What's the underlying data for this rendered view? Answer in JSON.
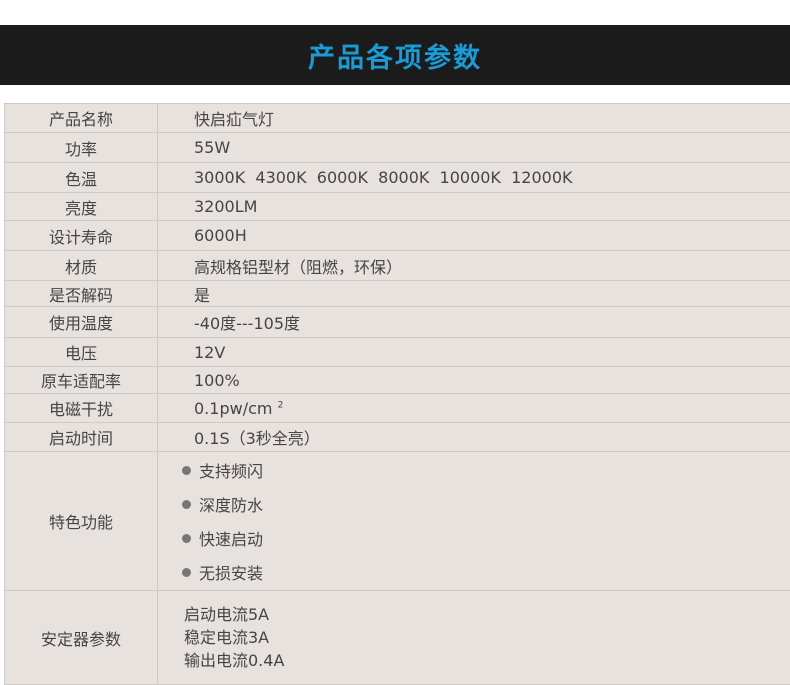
{
  "title": "产品各项参数",
  "rows": [
    {
      "k": "产品名称",
      "v": "快启疝气灯"
    },
    {
      "k": "功率",
      "v": "55W"
    },
    {
      "k": "色温",
      "v": "3000K  4300K  6000K  8000K  10000K  12000K"
    },
    {
      "k": "亮度",
      "v": "3200LM"
    },
    {
      "k": "设计寿命",
      "v": "6000H"
    },
    {
      "k": "材质",
      "v": "高规格铝型材（阻燃，环保）"
    },
    {
      "k": "是否解码",
      "v": "是"
    },
    {
      "k": "使用温度",
      "v": "-40度---105度"
    },
    {
      "k": "电压",
      "v": "12V"
    },
    {
      "k": "原车适配率",
      "v": "100%"
    },
    {
      "k": "电磁干扰",
      "v": "0.1pw/cm",
      "sup": "2"
    },
    {
      "k": "启动时间",
      "v": "0.1S（3秒全亮）"
    }
  ],
  "features": {
    "k": "特色功能",
    "items": [
      "支持频闪",
      "深度防水",
      "快速启动",
      "无损安装"
    ]
  },
  "ballast": {
    "k": "安定器参数",
    "items": [
      "启动电流5A",
      "稳定电流3A",
      "输出电流0.4A"
    ]
  },
  "colors": {
    "banner": "#1b1b1b",
    "title": "#1a9ad6",
    "table_bg": "#e8e2df"
  }
}
